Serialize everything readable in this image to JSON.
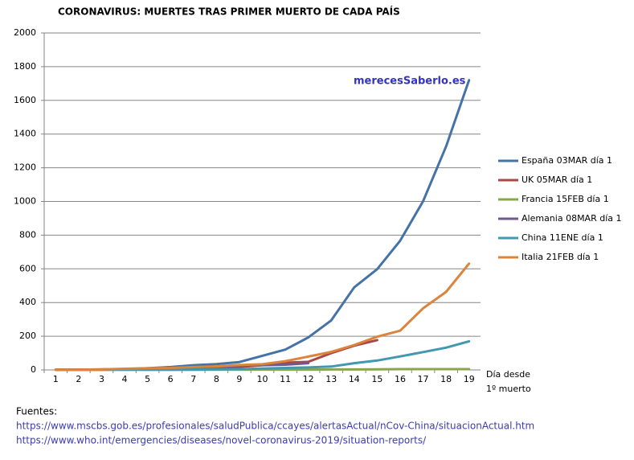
{
  "chart_data": {
    "type": "line",
    "title": "CORONAVIRUS: MUERTES TRAS PRIMER MUERTO DE CADA PAÍS",
    "watermark": "merecesSaberlo.es",
    "x_label": [
      "Día desde",
      "1º muerto"
    ],
    "categories": [
      "1",
      "2",
      "3",
      "4",
      "5",
      "6",
      "7",
      "8",
      "9",
      "10",
      "11",
      "12",
      "13",
      "14",
      "15",
      "16",
      "17",
      "18",
      "19"
    ],
    "series": [
      {
        "name": "España 03MAR día 1",
        "color": "#4572a7",
        "values": [
          1,
          2,
          3,
          5,
          10,
          17,
          28,
          35,
          47,
          84,
          121,
          193,
          294,
          490,
          598,
          767,
          1002,
          1326,
          1720
        ]
      },
      {
        "name": "UK 05MAR día 1",
        "color": "#aa4643",
        "values": [
          1,
          2,
          2,
          3,
          6,
          7,
          9,
          10,
          18,
          28,
          43,
          48,
          100,
          144,
          177,
          null,
          null,
          null,
          null
        ]
      },
      {
        "name": "Francia 15FEB día 1",
        "color": "#89a54e",
        "values": [
          1,
          1,
          1,
          1,
          1,
          1,
          1,
          2,
          2,
          2,
          2,
          2,
          3,
          3,
          4,
          5,
          5,
          5,
          5
        ]
      },
      {
        "name": "Alemania 08MAR día 1",
        "color": "#71588f",
        "values": [
          2,
          2,
          3,
          3,
          7,
          9,
          11,
          17,
          24,
          28,
          31,
          40,
          null,
          null,
          null,
          null,
          null,
          null,
          null
        ]
      },
      {
        "name": "China 11ENE día 1",
        "color": "#4198af",
        "values": [
          1,
          1,
          1,
          1,
          1,
          1,
          2,
          3,
          5,
          8,
          12,
          15,
          20,
          40,
          56,
          80,
          106,
          132,
          170
        ]
      },
      {
        "name": "Italia 21FEB día 1",
        "color": "#db843d",
        "values": [
          1,
          2,
          3,
          7,
          10,
          12,
          17,
          21,
          29,
          34,
          52,
          79,
          107,
          148,
          197,
          233,
          366,
          463,
          631
        ]
      }
    ],
    "ylim": [
      0,
      2000
    ],
    "yticks": [
      0,
      200,
      400,
      600,
      800,
      1000,
      1200,
      1400,
      1600,
      1800,
      2000
    ],
    "grid": true,
    "legend": "right",
    "sources": {
      "heading": "Fuentes:",
      "links": [
        "https://www.mscbs.gob.es/profesionales/saludPublica/ccayes/alertasActual/nCov-China/situacionActual.htm",
        "https://www.who.int/emergencies/diseases/novel-coronavirus-2019/situation-reports/"
      ]
    }
  }
}
